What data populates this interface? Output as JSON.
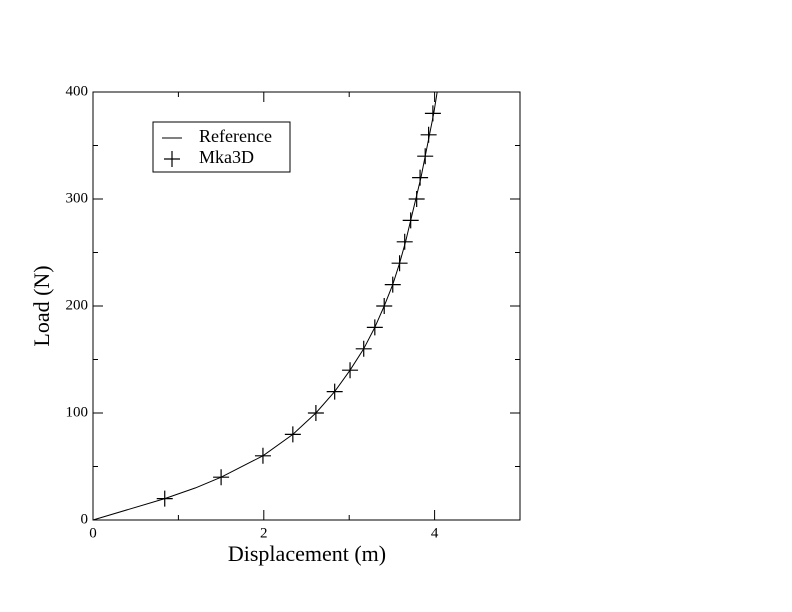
{
  "chart_data": {
    "type": "line",
    "xlabel": "Displacement (m)",
    "ylabel": "Load (N)",
    "xlim": [
      0,
      5
    ],
    "ylim": [
      0,
      400
    ],
    "xticks": [
      0,
      2,
      4
    ],
    "yticks": [
      0,
      100,
      200,
      300,
      400
    ],
    "xminorticks": [
      1,
      3,
      5
    ],
    "yminorticks": [
      50,
      150,
      250,
      350
    ],
    "grid": false,
    "legend": "upper left",
    "series": [
      {
        "name": "Reference",
        "color": "#000000",
        "style": "line",
        "x": [
          0,
          0.42,
          0.84,
          1.2,
          1.5,
          1.99,
          2.34,
          2.61,
          2.83,
          3.01,
          3.17,
          3.3,
          3.41,
          3.51,
          3.59,
          3.66,
          3.72,
          3.78,
          3.84,
          3.89,
          3.94,
          3.99,
          4.03
        ],
        "values": [
          0,
          10,
          20,
          30,
          40,
          60,
          80,
          100,
          120,
          140,
          160,
          180,
          200,
          220,
          240,
          260,
          280,
          300,
          320,
          340,
          360,
          380,
          400
        ]
      },
      {
        "name": "Mka3D",
        "color": "#000000",
        "style": "plus",
        "x": [
          0.84,
          1.5,
          1.99,
          2.34,
          2.61,
          2.83,
          3.01,
          3.17,
          3.3,
          3.41,
          3.51,
          3.59,
          3.65,
          3.72,
          3.79,
          3.83,
          3.89,
          3.93,
          3.98
        ],
        "values": [
          20,
          40,
          60,
          80,
          100,
          120,
          140,
          160,
          180,
          200,
          220,
          240,
          260,
          280,
          300,
          320,
          340,
          360,
          380
        ]
      }
    ]
  }
}
